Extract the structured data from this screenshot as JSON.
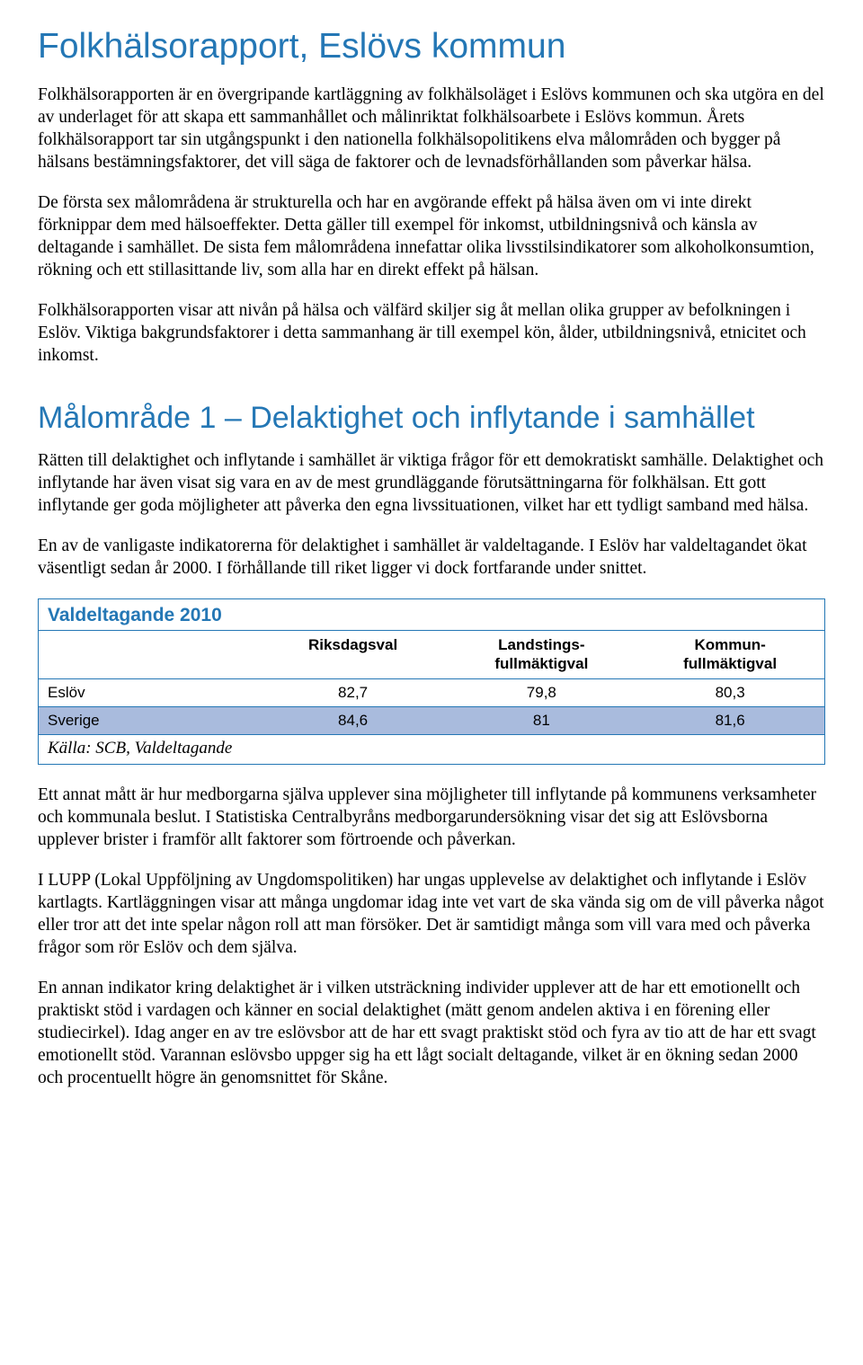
{
  "colors": {
    "heading": "#2477b5",
    "body_text": "#000000",
    "table_border": "#2477b5",
    "table_title": "#2477b5",
    "row_highlight": "#a9bbdd",
    "background": "#ffffff",
    "header_text": "#000000"
  },
  "fontsizes": {
    "h1": 39,
    "h2": 34,
    "body": 19.5,
    "table_title": 21,
    "table_header": 17,
    "table_cell": 17,
    "table_source": 19
  },
  "main_title": "Folkhälsorapport, Eslövs kommun",
  "intro_paragraphs": [
    "Folkhälsorapporten är en övergripande kartläggning av folkhälsoläget i Eslövs kommunen och ska utgöra en del av underlaget för att skapa ett sammanhållet och målinriktat folkhälsoarbete i Eslövs kommun. Årets folkhälsorapport tar sin utgångspunkt i den nationella folkhälsopolitikens elva målområden och bygger på hälsans bestämningsfaktorer, det vill säga de faktorer och de levnadsförhållanden som påverkar hälsa.",
    "De första sex målområdena är strukturella och har en avgörande effekt på hälsa även om vi inte direkt förknippar dem med hälsoeffekter. Detta gäller till exempel för inkomst, utbildningsnivå och känsla av deltagande i samhället. De sista fem målområdena innefattar olika livsstilsindikatorer som alkoholkonsumtion, rökning och ett stillasittande liv, som alla har en direkt effekt på hälsan.",
    "Folkhälsorapporten visar att nivån på hälsa och välfärd skiljer sig åt mellan olika grupper av befolkningen i Eslöv. Viktiga bakgrundsfaktorer i detta sammanhang är till exempel kön, ålder, utbildningsnivå, etnicitet och inkomst."
  ],
  "section_title": "Målområde 1 – Delaktighet och inflytande i samhället",
  "section_paragraphs_before": [
    "Rätten till delaktighet och inflytande i samhället är viktiga frågor för ett demokratiskt samhälle. Delaktighet och inflytande har även visat sig vara en av de mest grundläggande förutsättningarna för folkhälsan. Ett gott inflytande ger goda möjligheter att påverka den egna livssituationen, vilket har ett tydligt samband med hälsa.",
    "En av de vanligaste indikatorerna för delaktighet i samhället är valdeltagande. I Eslöv har valdeltagandet ökat väsentligt sedan år 2000. I förhållande till riket ligger vi dock fortfarande under snittet."
  ],
  "table": {
    "type": "table",
    "title": "Valdeltagande 2010",
    "columns": [
      "",
      "Riksdagsval",
      "Landstings-\nfullmäktigval",
      "Kommun-\nfullmäktigval"
    ],
    "col_html": [
      "",
      "Riksdagsval",
      "Landstings-<br>fullmäktigval",
      "Kommun-<br>fullmäktigval"
    ],
    "rows": [
      {
        "label": "Eslöv",
        "values": [
          "82,7",
          "79,8",
          "80,3"
        ],
        "highlight": false
      },
      {
        "label": "Sverige",
        "values": [
          "84,6",
          "81",
          "81,6"
        ],
        "highlight": true
      }
    ],
    "source": "Källa: SCB, Valdeltagande"
  },
  "section_paragraphs_after": [
    "Ett annat mått är hur medborgarna själva upplever sina möjligheter till inflytande på kommunens verksamheter och kommunala beslut. I Statistiska Centralbyråns medborgarundersökning visar det sig att Eslövsborna upplever brister i framför allt faktorer som förtroende och påverkan.",
    "I LUPP (Lokal Uppföljning av Ungdomspolitiken) har ungas upplevelse av delaktighet och inflytande i Eslöv kartlagts. Kartläggningen visar att många ungdomar idag inte vet vart de ska vända sig om de vill påverka något eller tror att det inte spelar någon roll att man försöker. Det är samtidigt många som vill vara med och påverka frågor som rör Eslöv och dem själva.",
    "En annan indikator kring delaktighet är i vilken utsträckning individer upplever att de har ett emotionellt och praktiskt stöd i vardagen och känner en social delaktighet (mätt genom andelen aktiva i en förening eller studiecirkel). Idag anger en av tre eslövsbor att de har ett svagt praktiskt stöd och fyra av tio att de har ett svagt emotionellt stöd. Varannan eslövsbo uppger sig ha ett lågt socialt deltagande, vilket är en ökning sedan 2000 och procentuellt högre än genomsnittet för Skåne."
  ]
}
